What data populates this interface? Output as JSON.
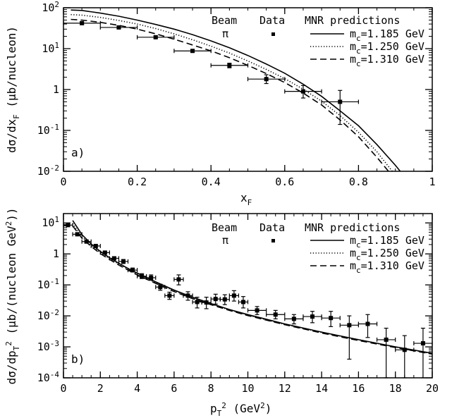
{
  "chart_data": [
    {
      "type": "line",
      "panel_label": "a)",
      "xlabel": "x_F",
      "ylabel": "dσ/dx_F (μb/nucleon)",
      "xlim": [
        0,
        1
      ],
      "ylim": [
        0.01,
        100
      ],
      "yscale": "log",
      "x_ticks": [
        "0",
        "0.2",
        "0.4",
        "0.6",
        "0.8",
        "1"
      ],
      "y_ticks": [
        "10^-2",
        "10^-1",
        "1",
        "10^1",
        "10^2"
      ],
      "legend": {
        "beam_header": "Beam",
        "data_header": "Data",
        "pred_header": "MNR predictions",
        "beam": "π",
        "entries": [
          "m_c=1.185 GeV",
          "m_c=1.250 GeV",
          "m_c=1.310 GeV"
        ]
      },
      "data": [
        {
          "x": 0.05,
          "y": 42,
          "xerr": 0.05,
          "ylo": 39,
          "yhi": 45
        },
        {
          "x": 0.15,
          "y": 33,
          "xerr": 0.05,
          "ylo": 31,
          "yhi": 35
        },
        {
          "x": 0.25,
          "y": 19,
          "xerr": 0.05,
          "ylo": 18,
          "yhi": 20.5
        },
        {
          "x": 0.35,
          "y": 8.8,
          "xerr": 0.05,
          "ylo": 8.3,
          "yhi": 9.4
        },
        {
          "x": 0.45,
          "y": 3.9,
          "xerr": 0.05,
          "ylo": 3.4,
          "yhi": 4.4
        },
        {
          "x": 0.55,
          "y": 1.8,
          "xerr": 0.05,
          "ylo": 1.4,
          "yhi": 2.3
        },
        {
          "x": 0.65,
          "y": 0.9,
          "xerr": 0.05,
          "ylo": 0.62,
          "yhi": 1.25
        },
        {
          "x": 0.75,
          "y": 0.5,
          "xerr": 0.05,
          "ylo": 0.14,
          "yhi": 0.95
        }
      ],
      "series": [
        {
          "name": "m_c=1.185 GeV",
          "dash": "solid",
          "x": [
            0.02,
            0.05,
            0.1,
            0.15,
            0.2,
            0.25,
            0.3,
            0.35,
            0.4,
            0.45,
            0.5,
            0.55,
            0.6,
            0.65,
            0.7,
            0.75,
            0.8,
            0.85,
            0.9,
            0.93
          ],
          "y": [
            88,
            86,
            74,
            62,
            50,
            39,
            30,
            22,
            15.5,
            10.5,
            6.8,
            4.2,
            2.5,
            1.35,
            0.68,
            0.3,
            0.13,
            0.045,
            0.014,
            0.0065
          ]
        },
        {
          "name": "m_c=1.250 GeV",
          "dash": "dotted",
          "x": [
            0.02,
            0.05,
            0.1,
            0.15,
            0.2,
            0.25,
            0.3,
            0.35,
            0.4,
            0.45,
            0.5,
            0.55,
            0.6,
            0.65,
            0.7,
            0.75,
            0.8,
            0.85,
            0.9
          ],
          "y": [
            68,
            66,
            58,
            49,
            40,
            31,
            23,
            16.5,
            11.5,
            7.8,
            5,
            3.1,
            1.85,
            1.02,
            0.52,
            0.23,
            0.09,
            0.03,
            0.008
          ]
        },
        {
          "name": "m_c=1.310 GeV",
          "dash": "dashed",
          "x": [
            0.02,
            0.05,
            0.1,
            0.15,
            0.2,
            0.25,
            0.3,
            0.35,
            0.4,
            0.45,
            0.5,
            0.55,
            0.6,
            0.65,
            0.7,
            0.75,
            0.8,
            0.85,
            0.89
          ],
          "y": [
            52,
            50,
            44,
            37,
            30,
            23,
            17,
            12.3,
            8.8,
            6,
            3.9,
            2.45,
            1.48,
            0.82,
            0.42,
            0.18,
            0.07,
            0.022,
            0.008
          ]
        }
      ]
    },
    {
      "type": "line",
      "panel_label": "b)",
      "xlabel": "p_T^2 (GeV^2)",
      "ylabel": "dσ/dp_T^2 (μb/(nucleon GeV^2))",
      "xlim": [
        0,
        20
      ],
      "ylim": [
        0.0001,
        20
      ],
      "yscale": "log",
      "x_ticks": [
        "0",
        "2",
        "4",
        "6",
        "8",
        "10",
        "12",
        "14",
        "16",
        "18",
        "20"
      ],
      "y_ticks": [
        "10^-4",
        "10^-3",
        "10^-2",
        "10^-1",
        "1",
        "10^1"
      ],
      "legend": {
        "beam_header": "Beam",
        "data_header": "Data",
        "pred_header": "MNR predictions",
        "beam": "π",
        "entries": [
          "m_c=1.185 GeV",
          "m_c=1.250 GeV",
          "m_c=1.310 GeV"
        ]
      },
      "data": [
        {
          "x": 0.25,
          "y": 8.5,
          "xerr": 0.25,
          "ylo": 7.9,
          "yhi": 9.2
        },
        {
          "x": 0.75,
          "y": 4.3,
          "xerr": 0.25,
          "ylo": 4.0,
          "yhi": 4.7
        },
        {
          "x": 1.25,
          "y": 2.5,
          "xerr": 0.25,
          "ylo": 2.3,
          "yhi": 2.75
        },
        {
          "x": 1.75,
          "y": 1.8,
          "xerr": 0.25,
          "ylo": 1.65,
          "yhi": 1.97
        },
        {
          "x": 2.25,
          "y": 1.1,
          "xerr": 0.25,
          "ylo": 1.0,
          "yhi": 1.22
        },
        {
          "x": 2.75,
          "y": 0.72,
          "xerr": 0.25,
          "ylo": 0.64,
          "yhi": 0.81
        },
        {
          "x": 3.25,
          "y": 0.57,
          "xerr": 0.25,
          "ylo": 0.49,
          "yhi": 0.66
        },
        {
          "x": 3.75,
          "y": 0.3,
          "xerr": 0.25,
          "ylo": 0.26,
          "yhi": 0.35
        },
        {
          "x": 4.25,
          "y": 0.19,
          "xerr": 0.25,
          "ylo": 0.16,
          "yhi": 0.23
        },
        {
          "x": 4.75,
          "y": 0.17,
          "xerr": 0.25,
          "ylo": 0.14,
          "yhi": 0.21
        },
        {
          "x": 5.25,
          "y": 0.085,
          "xerr": 0.25,
          "ylo": 0.067,
          "yhi": 0.105
        },
        {
          "x": 5.75,
          "y": 0.045,
          "xerr": 0.25,
          "ylo": 0.034,
          "yhi": 0.058
        },
        {
          "x": 6.25,
          "y": 0.15,
          "xerr": 0.25,
          "ylo": 0.1,
          "yhi": 0.21
        },
        {
          "x": 6.75,
          "y": 0.045,
          "xerr": 0.25,
          "ylo": 0.032,
          "yhi": 0.06
        },
        {
          "x": 7.25,
          "y": 0.028,
          "xerr": 0.25,
          "ylo": 0.018,
          "yhi": 0.04
        },
        {
          "x": 7.75,
          "y": 0.027,
          "xerr": 0.25,
          "ylo": 0.017,
          "yhi": 0.04
        },
        {
          "x": 8.25,
          "y": 0.035,
          "xerr": 0.25,
          "ylo": 0.024,
          "yhi": 0.05
        },
        {
          "x": 8.75,
          "y": 0.034,
          "xerr": 0.25,
          "ylo": 0.023,
          "yhi": 0.048
        },
        {
          "x": 9.25,
          "y": 0.045,
          "xerr": 0.25,
          "ylo": 0.03,
          "yhi": 0.065
        },
        {
          "x": 9.75,
          "y": 0.028,
          "xerr": 0.25,
          "ylo": 0.018,
          "yhi": 0.042
        },
        {
          "x": 10.5,
          "y": 0.015,
          "xerr": 0.5,
          "ylo": 0.011,
          "yhi": 0.02
        },
        {
          "x": 11.5,
          "y": 0.011,
          "xerr": 0.5,
          "ylo": 0.008,
          "yhi": 0.015
        },
        {
          "x": 12.5,
          "y": 0.008,
          "xerr": 0.5,
          "ylo": 0.0055,
          "yhi": 0.011
        },
        {
          "x": 13.5,
          "y": 0.0095,
          "xerr": 0.5,
          "ylo": 0.006,
          "yhi": 0.014
        },
        {
          "x": 14.5,
          "y": 0.0085,
          "xerr": 0.5,
          "ylo": 0.0045,
          "yhi": 0.014
        },
        {
          "x": 15.5,
          "y": 0.005,
          "xerr": 0.5,
          "ylo": 0.0004,
          "yhi": 0.01
        },
        {
          "x": 16.5,
          "y": 0.0055,
          "xerr": 0.5,
          "ylo": 0.002,
          "yhi": 0.011
        },
        {
          "x": 17.5,
          "y": 0.0017,
          "xerr": 0.5,
          "ylo": 0.0001,
          "yhi": 0.004
        },
        {
          "x": 18.5,
          "y": 0.0008,
          "xerr": 0.5,
          "ylo": 0.0001,
          "yhi": 0.0023
        },
        {
          "x": 19.5,
          "y": 0.0013,
          "xerr": 0.5,
          "ylo": 0.0001,
          "yhi": 0.004
        }
      ],
      "series": [
        {
          "name": "m_c=1.185 GeV",
          "dash": "solid",
          "x": [
            0.5,
            1,
            1.5,
            2,
            2.5,
            3,
            3.5,
            4,
            5,
            6,
            7,
            8,
            9,
            10,
            12,
            14,
            16,
            18,
            20
          ],
          "y": [
            12,
            4.2,
            2.1,
            1.2,
            0.75,
            0.5,
            0.34,
            0.24,
            0.125,
            0.068,
            0.04,
            0.025,
            0.016,
            0.011,
            0.0055,
            0.003,
            0.0017,
            0.001,
            0.00062
          ]
        },
        {
          "name": "m_c=1.250 GeV",
          "dash": "dotted",
          "x": [
            0.5,
            1,
            1.5,
            2,
            2.5,
            3,
            3.5,
            4,
            5,
            6,
            7,
            8,
            9,
            10,
            12,
            14,
            16,
            18,
            20
          ],
          "y": [
            9.5,
            3.6,
            1.9,
            1.1,
            0.7,
            0.47,
            0.32,
            0.225,
            0.118,
            0.064,
            0.038,
            0.024,
            0.0155,
            0.0105,
            0.0053,
            0.0029,
            0.0017,
            0.00098,
            0.0006
          ]
        },
        {
          "name": "m_c=1.310 GeV",
          "dash": "dashed",
          "x": [
            0.5,
            1,
            1.5,
            2,
            2.5,
            3,
            3.5,
            4,
            5,
            6,
            7,
            8,
            9,
            10,
            12,
            14,
            16,
            18,
            20
          ],
          "y": [
            8,
            3.2,
            1.75,
            1.02,
            0.66,
            0.44,
            0.3,
            0.21,
            0.112,
            0.061,
            0.036,
            0.023,
            0.015,
            0.0102,
            0.0052,
            0.0028,
            0.0016,
            0.00095,
            0.00058
          ]
        }
      ]
    }
  ]
}
